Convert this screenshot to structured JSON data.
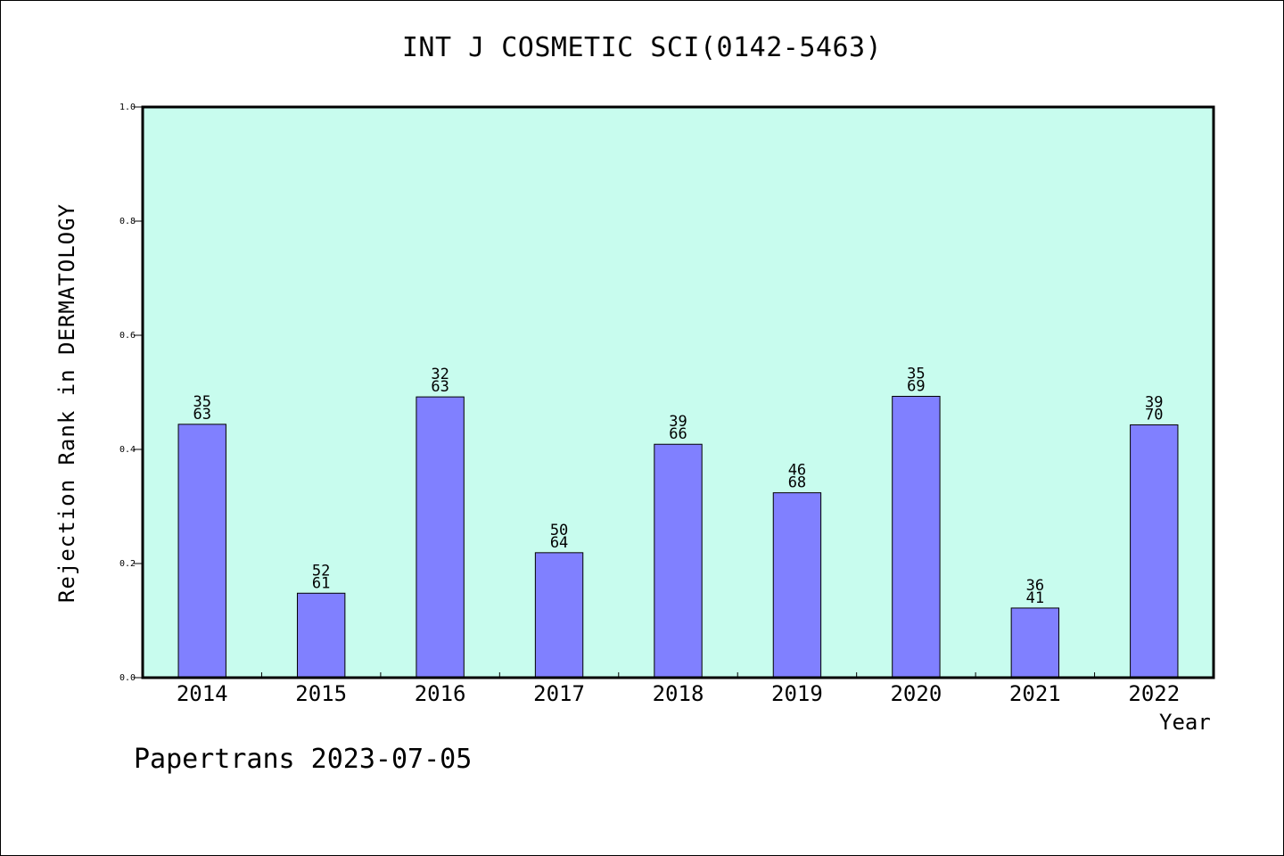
{
  "chart_data": {
    "type": "bar",
    "title": "INT J COSMETIC SCI(0142-5463)",
    "xlabel": "Year",
    "ylabel": "Rejection Rank in DERMATOLOGY",
    "ylim": [
      0,
      1.0
    ],
    "yticks": [
      "0.0",
      "0.2",
      "0.4",
      "0.6",
      "0.8",
      "1.0"
    ],
    "ytick_values": [
      0.0,
      0.2,
      0.4,
      0.6,
      0.8,
      1.0
    ],
    "categories": [
      "2014",
      "2015",
      "2016",
      "2017",
      "2018",
      "2019",
      "2020",
      "2021",
      "2022"
    ],
    "values": [
      0.444,
      0.148,
      0.492,
      0.219,
      0.409,
      0.324,
      0.493,
      0.122,
      0.443
    ],
    "labels_top": [
      "35",
      "52",
      "32",
      "50",
      "39",
      "46",
      "35",
      "36",
      "39"
    ],
    "labels_bottom": [
      "63",
      "61",
      "63",
      "64",
      "66",
      "68",
      "69",
      "41",
      "70"
    ],
    "grid": false,
    "colors": {
      "plot_background": "#c8fcee",
      "bar_fill": "#8080ff",
      "bar_stroke": "#000000"
    }
  },
  "footer": {
    "text": "Papertrans 2023-07-05"
  }
}
